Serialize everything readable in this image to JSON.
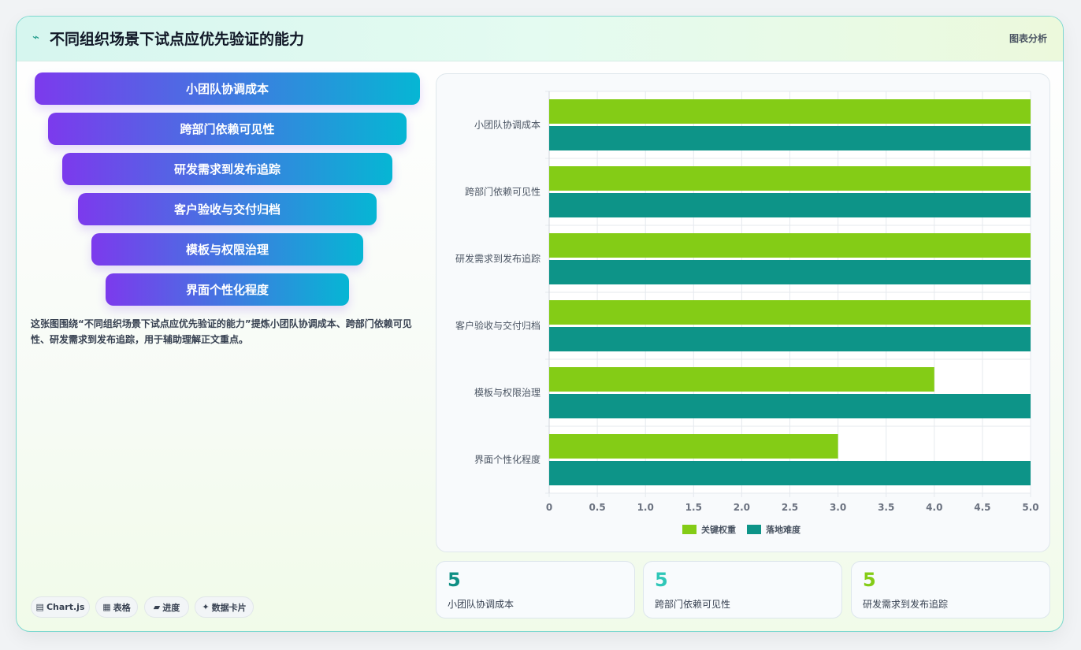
{
  "header": {
    "icon": "pulse-icon",
    "title": "不同组织场景下试点应优先验证的能力",
    "tag": "图表分析"
  },
  "funnel": [
    "小团队协调成本",
    "跨部门依赖可见性",
    "研发需求到发布追踪",
    "客户验收与交付归档",
    "模板与权限治理",
    "界面个性化程度"
  ],
  "description": "这张图围绕“不同组织场景下试点应优先验证的能力”提炼小团队协调成本、跨部门依赖可见性、研发需求到发布追踪，用于辅助理解正文重点。",
  "pills": [
    {
      "icon": "chart-icon",
      "glyph": "▤",
      "label": "Chart.js"
    },
    {
      "icon": "table-icon",
      "glyph": "▦",
      "label": "表格"
    },
    {
      "icon": "progress-icon",
      "glyph": "▰",
      "label": "进度"
    },
    {
      "icon": "sparkle-icon",
      "glyph": "✦",
      "label": "数据卡片"
    }
  ],
  "stats": [
    {
      "value": "5",
      "label": "小团队协调成本",
      "color": "#0f8f84"
    },
    {
      "value": "5",
      "label": "跨部门依赖可见性",
      "color": "#2fc7b8"
    },
    {
      "value": "5",
      "label": "研发需求到发布追踪",
      "color": "#84cc16"
    }
  ],
  "chart_data": {
    "type": "bar",
    "orientation": "horizontal",
    "categories": [
      "小团队协调成本",
      "跨部门依赖可见性",
      "研发需求到发布追踪",
      "客户验收与交付归档",
      "模板与权限治理",
      "界面个性化程度"
    ],
    "series": [
      {
        "name": "关键权重",
        "color": "#84cc16",
        "values": [
          5,
          5,
          5,
          5,
          4,
          3
        ]
      },
      {
        "name": "落地难度",
        "color": "#0d9488",
        "values": [
          5,
          5,
          5,
          5,
          5,
          5
        ]
      }
    ],
    "xlim": [
      0,
      5
    ],
    "xticks": [
      "0",
      "0.5",
      "1.0",
      "1.5",
      "2.0",
      "2.5",
      "3.0",
      "3.5",
      "4.0",
      "4.5",
      "5.0"
    ],
    "grid": true,
    "legend_position": "bottom"
  }
}
